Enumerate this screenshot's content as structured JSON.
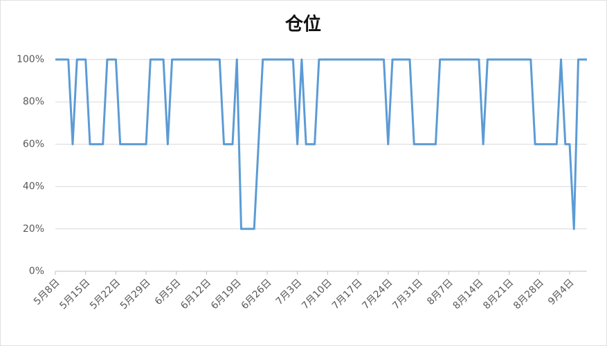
{
  "chart_data": {
    "type": "line",
    "title": "仓位",
    "categories": [
      "5月8日",
      null,
      null,
      null,
      null,
      null,
      null,
      "5月15日",
      null,
      null,
      null,
      null,
      null,
      null,
      "5月22日",
      null,
      null,
      null,
      null,
      null,
      null,
      "5月29日",
      null,
      null,
      null,
      null,
      null,
      null,
      "6月5日",
      null,
      null,
      null,
      null,
      null,
      null,
      "6月12日",
      null,
      null,
      null,
      null,
      null,
      null,
      "6月19日",
      null,
      null,
      null,
      null,
      null,
      null,
      "6月26日",
      null,
      null,
      null,
      null,
      null,
      null,
      "7月3日",
      null,
      null,
      null,
      null,
      null,
      null,
      "7月10日",
      null,
      null,
      null,
      null,
      null,
      null,
      "7月17日",
      null,
      null,
      null,
      null,
      null,
      null,
      "7月24日",
      null,
      null,
      null,
      null,
      null,
      null,
      "7月31日",
      null,
      null,
      null,
      null,
      null,
      null,
      "8月7日",
      null,
      null,
      null,
      null,
      null,
      null,
      "8月14日",
      null,
      null,
      null,
      null,
      null,
      null,
      "8月21日",
      null,
      null,
      null,
      null,
      null,
      null,
      "8月28日",
      null,
      null,
      null,
      null,
      null,
      null,
      "9月4日",
      null,
      null,
      null,
      null
    ],
    "values": [
      100,
      100,
      100,
      100,
      60,
      100,
      100,
      100,
      60,
      60,
      60,
      60,
      100,
      100,
      100,
      60,
      60,
      60,
      60,
      60,
      60,
      60,
      100,
      100,
      100,
      100,
      60,
      100,
      100,
      100,
      100,
      100,
      100,
      100,
      100,
      100,
      100,
      100,
      100,
      60,
      60,
      60,
      100,
      20,
      20,
      20,
      20,
      60,
      100,
      100,
      100,
      100,
      100,
      100,
      100,
      100,
      60,
      100,
      60,
      60,
      60,
      100,
      100,
      100,
      100,
      100,
      100,
      100,
      100,
      100,
      100,
      100,
      100,
      100,
      100,
      100,
      100,
      60,
      100,
      100,
      100,
      100,
      100,
      60,
      60,
      60,
      60,
      60,
      60,
      100,
      100,
      100,
      100,
      100,
      100,
      100,
      100,
      100,
      100,
      60,
      100,
      100,
      100,
      100,
      100,
      100,
      100,
      100,
      100,
      100,
      100,
      60,
      60,
      60,
      60,
      60,
      60,
      100,
      60,
      60,
      20,
      100,
      100,
      100
    ],
    "color": "#5b9bd5",
    "ylim": [
      0,
      100
    ],
    "yticks": [
      {
        "value": 0,
        "label": "0%"
      },
      {
        "value": 20,
        "label": "20%"
      },
      {
        "value": 40,
        "label": "40%"
      },
      {
        "value": 60,
        "label": "60%"
      },
      {
        "value": 80,
        "label": "80%"
      },
      {
        "value": 100,
        "label": "100%"
      }
    ],
    "grid": true
  }
}
